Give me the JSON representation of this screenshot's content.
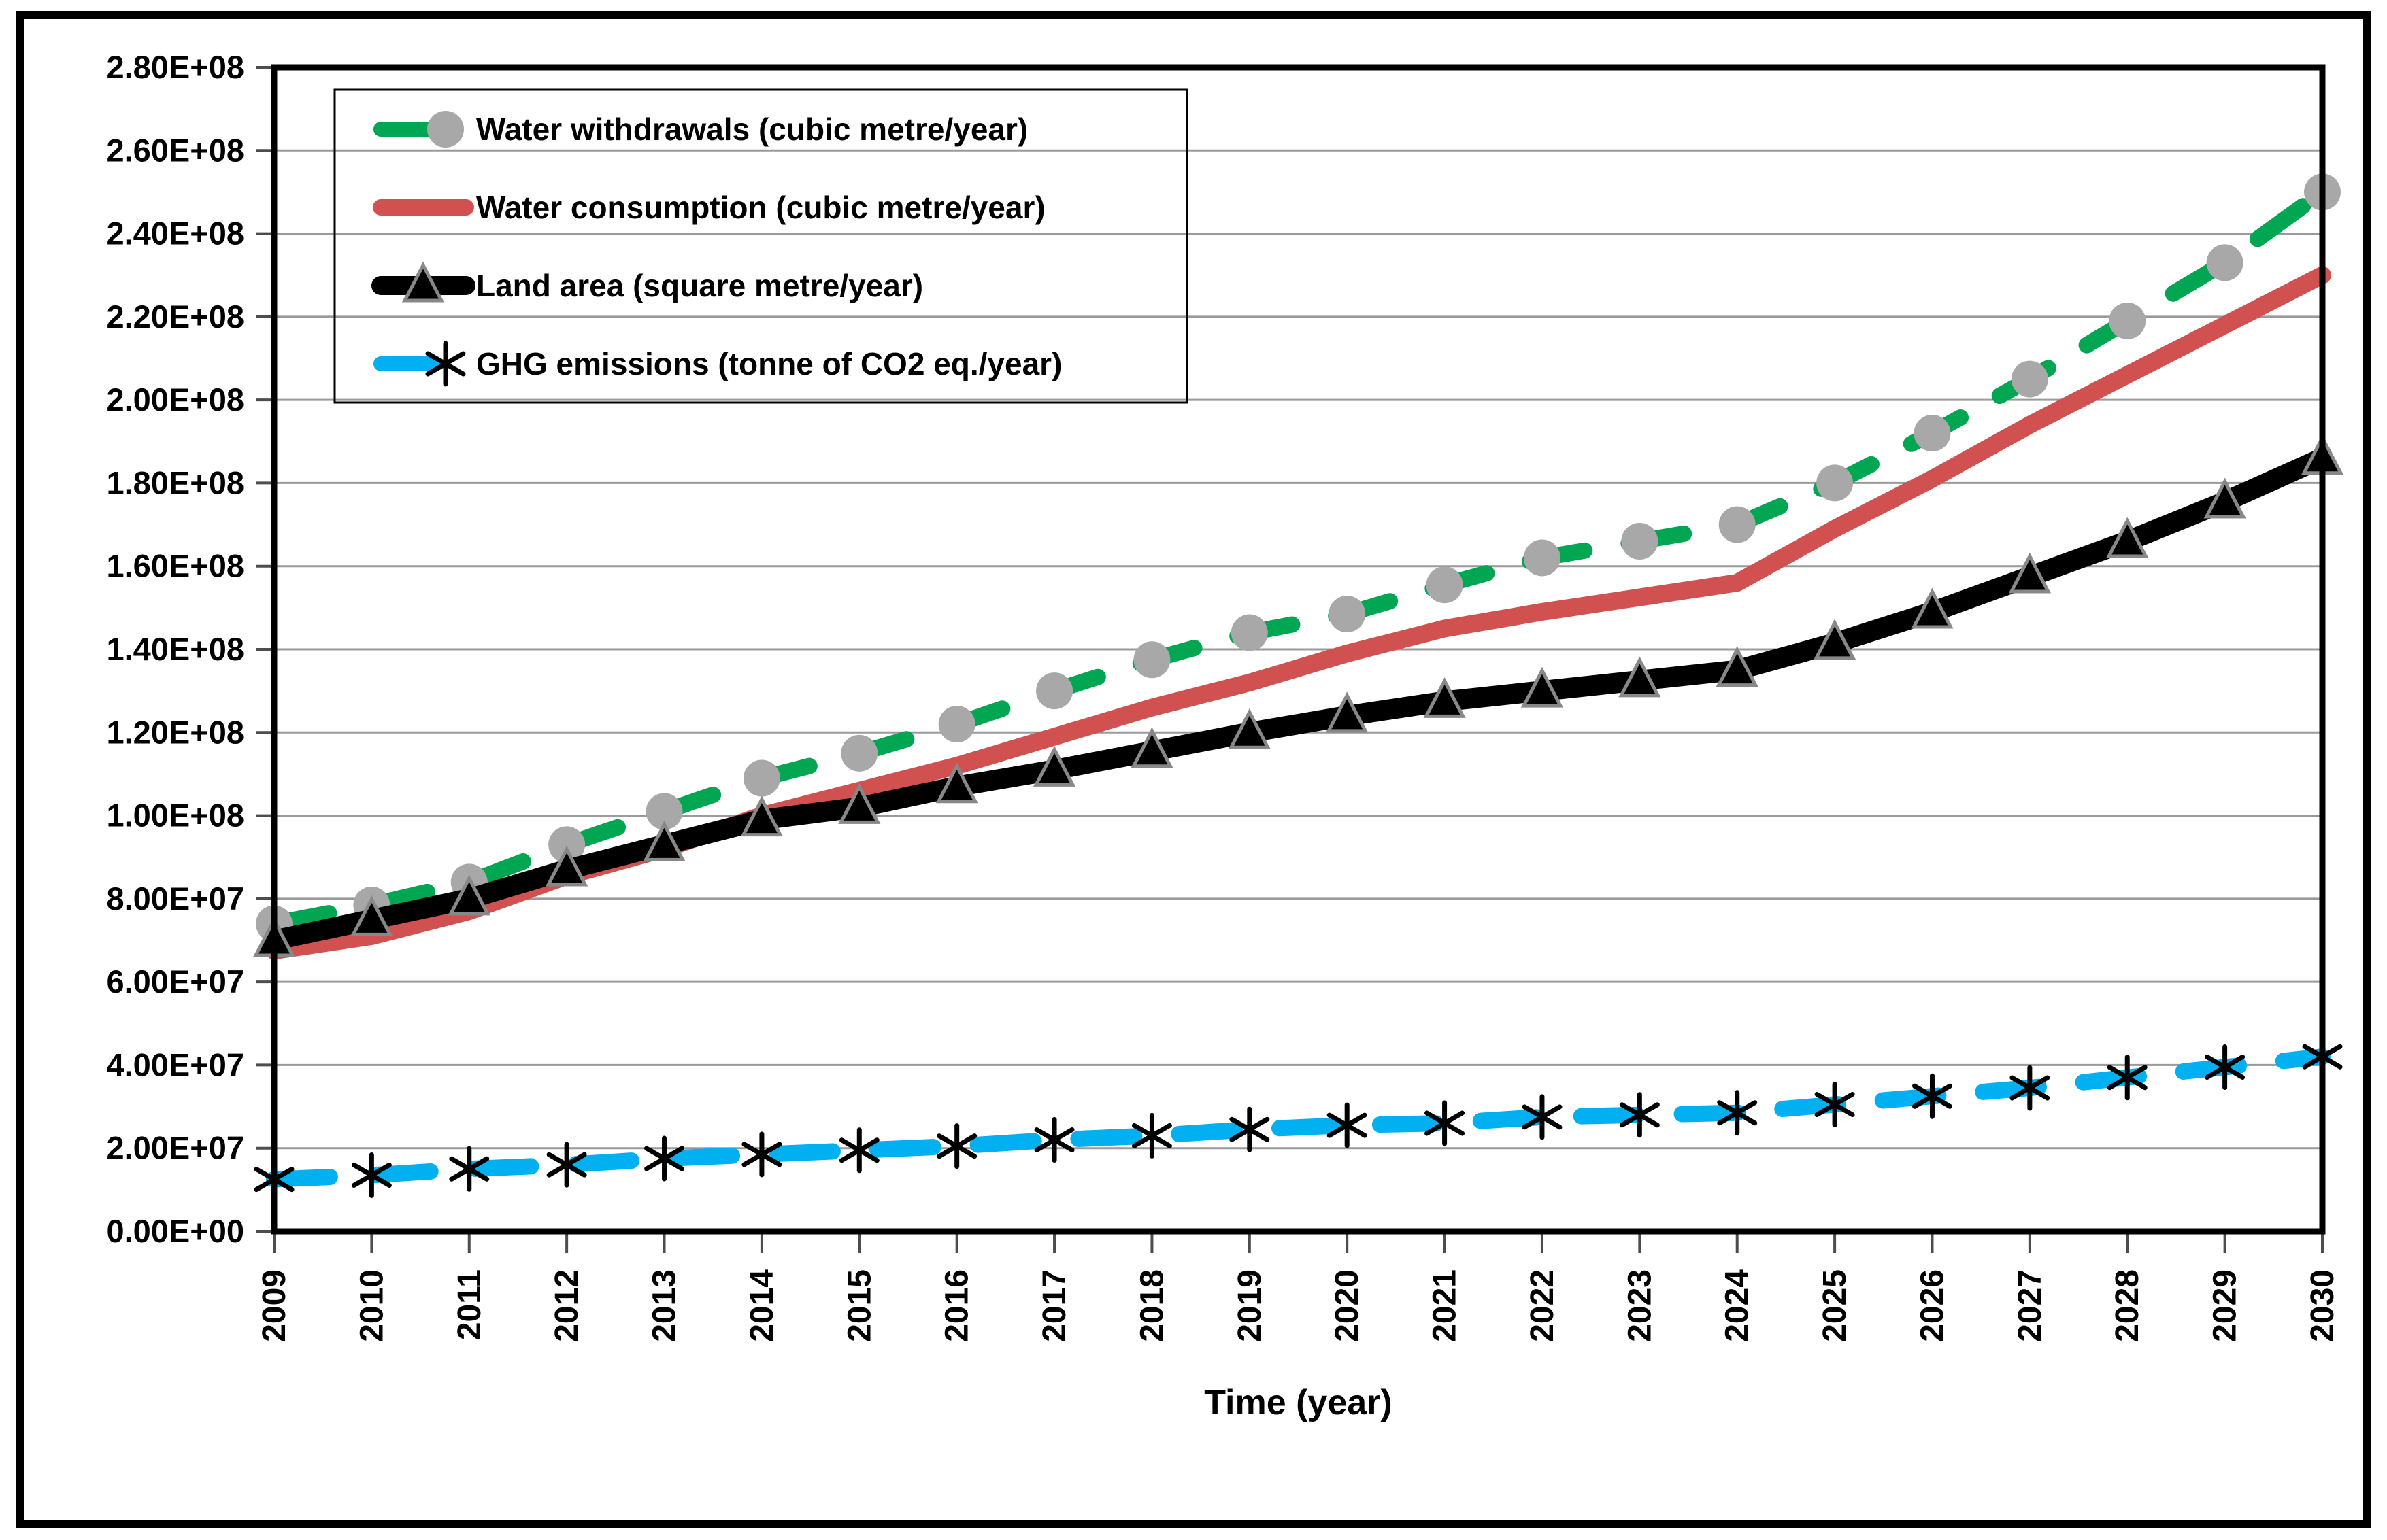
{
  "chart_data": {
    "type": "line",
    "title": "",
    "xlabel": "Time (year)",
    "ylabel": "",
    "grid": true,
    "legend_position": "top-left",
    "x": [
      2009,
      2010,
      2011,
      2012,
      2013,
      2014,
      2015,
      2016,
      2017,
      2018,
      2019,
      2020,
      2021,
      2022,
      2023,
      2024,
      2025,
      2026,
      2027,
      2028,
      2029,
      2030
    ],
    "y_axis": {
      "min": 0,
      "max": 280000000,
      "step": 20000000,
      "tick_labels": [
        "0.00E+00",
        "2.00E+07",
        "4.00E+07",
        "6.00E+07",
        "8.00E+07",
        "1.00E+08",
        "1.20E+08",
        "1.40E+08",
        "1.60E+08",
        "1.80E+08",
        "2.00E+08",
        "2.20E+08",
        "2.40E+08",
        "2.60E+08",
        "2.80E+08"
      ]
    },
    "series": [
      {
        "name": "Water withdrawals (cubic metre/year)",
        "color": "#00a651",
        "line_style": "dashed",
        "line_width": 24,
        "marker": "circle",
        "marker_color": "#a8a8a8",
        "values": [
          74000000,
          78500000,
          84000000,
          93000000,
          101000000,
          109000000,
          115000000,
          122000000,
          130000000,
          137500000,
          144000000,
          148500000,
          155500000,
          162000000,
          166000000,
          170000000,
          180000000,
          192000000,
          205000000,
          219000000,
          233000000,
          250000000
        ]
      },
      {
        "name": "Water consumption (cubic metre/year)",
        "color": "#d15050",
        "line_style": "solid",
        "line_width": 26,
        "marker": "none",
        "marker_color": "#d15050",
        "values": [
          67500000,
          71000000,
          77000000,
          85500000,
          92000000,
          100000000,
          106000000,
          112000000,
          119000000,
          126000000,
          132000000,
          139000000,
          145000000,
          149000000,
          152500000,
          156000000,
          169000000,
          181000000,
          194000000,
          206000000,
          218000000,
          230000000
        ]
      },
      {
        "name": "Land area (square metre/year)",
        "color": "#000000",
        "line_style": "solid",
        "line_width": 30,
        "marker": "triangle",
        "marker_color": "#888888",
        "values": [
          70000000,
          75000000,
          80000000,
          87000000,
          93000000,
          99000000,
          102000000,
          107000000,
          111000000,
          115500000,
          120000000,
          124000000,
          127500000,
          130000000,
          132500000,
          135000000,
          141500000,
          149000000,
          157500000,
          166000000,
          175500000,
          186000000
        ]
      },
      {
        "name": "GHG emissions (tonne of CO2 eq./year)",
        "color": "#00b0f0",
        "line_style": "dashed",
        "line_width": 24,
        "marker": "asterisk",
        "marker_color": "#000000",
        "values": [
          12500000,
          13500000,
          15000000,
          16000000,
          17500000,
          18500000,
          19500000,
          20500000,
          22000000,
          23000000,
          24500000,
          25500000,
          26000000,
          27500000,
          28000000,
          28500000,
          30500000,
          32500000,
          34500000,
          37000000,
          39500000,
          42000000
        ]
      }
    ],
    "colors": {
      "gridline": "#9a9a9a",
      "axis": "#000000",
      "tick": "#4d4d4d",
      "frame": "#000000",
      "background": "#ffffff"
    }
  }
}
